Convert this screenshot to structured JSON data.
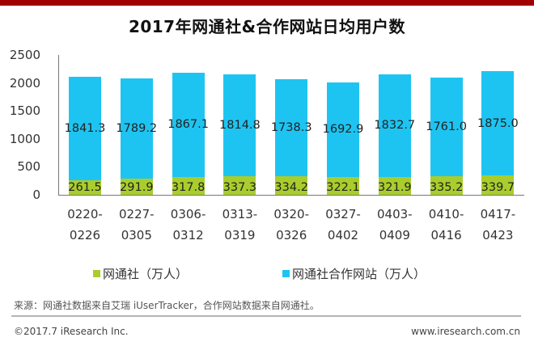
{
  "header": {
    "title": "2017年网通社&合作网站日均用户数"
  },
  "chart_data": {
    "type": "bar",
    "stacked": true,
    "title": "2017年网通社&合作网站日均用户数",
    "xlabel": "",
    "ylabel": "",
    "ylim": [
      0,
      2500
    ],
    "yticks": [
      "2500",
      "2000",
      "1500",
      "1000",
      "500",
      "0"
    ],
    "categories": [
      "0220-0226",
      "0227-0305",
      "0306-0312",
      "0313-0319",
      "0320-0326",
      "0327-0402",
      "0403-0409",
      "0410-0416",
      "0417-0423"
    ],
    "category_lines": [
      [
        "0220-",
        "0226"
      ],
      [
        "0227-",
        "0305"
      ],
      [
        "0306-",
        "0312"
      ],
      [
        "0313-",
        "0319"
      ],
      [
        "0320-",
        "0326"
      ],
      [
        "0327-",
        "0402"
      ],
      [
        "0403-",
        "0409"
      ],
      [
        "0410-",
        "0416"
      ],
      [
        "0417-",
        "0423"
      ]
    ],
    "series": [
      {
        "name": "网通社（万人）",
        "color": "#a9cd2d",
        "values": [
          261.5,
          291.9,
          317.8,
          337.3,
          334.2,
          322.1,
          321.9,
          335.2,
          339.7
        ],
        "labels": [
          "261.5",
          "291.9",
          "317.8",
          "337.3",
          "334.2",
          "322.1",
          "321.9",
          "335.2",
          "339.7"
        ]
      },
      {
        "name": "网通社合作网站（万人）",
        "color": "#1ec4f1",
        "values": [
          1841.3,
          1789.2,
          1867.1,
          1814.8,
          1738.3,
          1692.9,
          1832.7,
          1761.0,
          1875.0
        ],
        "labels": [
          "1841.3",
          "1789.2",
          "1867.1",
          "1814.8",
          "1738.3",
          "1692.9",
          "1832.7",
          "1761.0",
          "1875.0"
        ]
      }
    ],
    "legend_position": "bottom",
    "grid": false
  },
  "legend": {
    "items": [
      {
        "label": "网通社（万人）",
        "color": "#a9cd2d"
      },
      {
        "label": "网通社合作网站（万人）",
        "color": "#1ec4f1"
      }
    ]
  },
  "source": {
    "text": "来源：网通社数据来自艾瑞 iUserTracker，合作网站数据来自网通社。"
  },
  "footer": {
    "copyright": "©2017.7 iResearch Inc.",
    "website": "www.iresearch.com.cn"
  },
  "colors": {
    "top_bar": "#a00000",
    "series_wt": "#a9cd2d",
    "series_site": "#1ec4f1"
  }
}
